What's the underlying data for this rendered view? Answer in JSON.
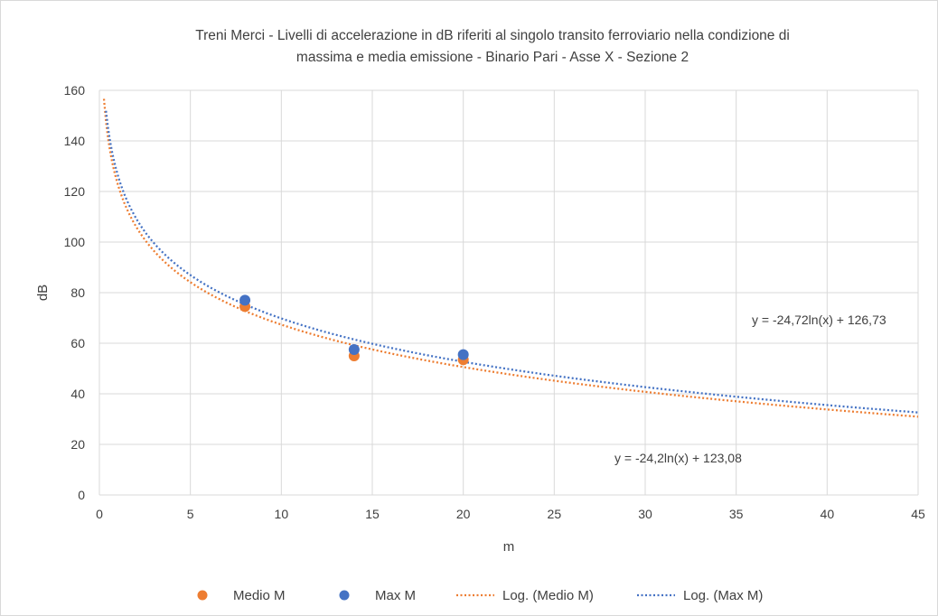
{
  "chart_data": {
    "type": "scatter",
    "title_line1": "Treni Merci - Livelli di accelerazione in dB riferiti al singolo transito ferroviario nella condizione di",
    "title_line2": "massima e media emissione - Binario Pari - Asse X - Sezione 2",
    "xlabel": "m",
    "ylabel": "dB",
    "xlim": [
      0,
      45
    ],
    "ylim": [
      0,
      160
    ],
    "x_ticks": [
      0,
      5,
      10,
      15,
      20,
      25,
      30,
      35,
      40,
      45
    ],
    "y_ticks": [
      0,
      20,
      40,
      60,
      80,
      100,
      120,
      140,
      160
    ],
    "grid": true,
    "legend_position": "bottom",
    "series": [
      {
        "name": "Medio M",
        "kind": "scatter",
        "color": "#ED7D31",
        "x": [
          8,
          14,
          20
        ],
        "y": [
          74.5,
          55,
          53.5
        ]
      },
      {
        "name": "Max M",
        "kind": "scatter",
        "color": "#4472C4",
        "x": [
          8,
          14,
          20
        ],
        "y": [
          77,
          57.5,
          55.5
        ]
      }
    ],
    "trendlines": [
      {
        "name": "Log. (Medio M)",
        "color": "#ED7D31",
        "a": -24.2,
        "b": 123.08,
        "equation": "y = -24,2ln(x) + 123,08"
      },
      {
        "name": "Log. (Max M)",
        "color": "#4472C4",
        "a": -24.72,
        "b": 126.73,
        "equation": "y = -24,72ln(x) + 126,73"
      }
    ]
  }
}
